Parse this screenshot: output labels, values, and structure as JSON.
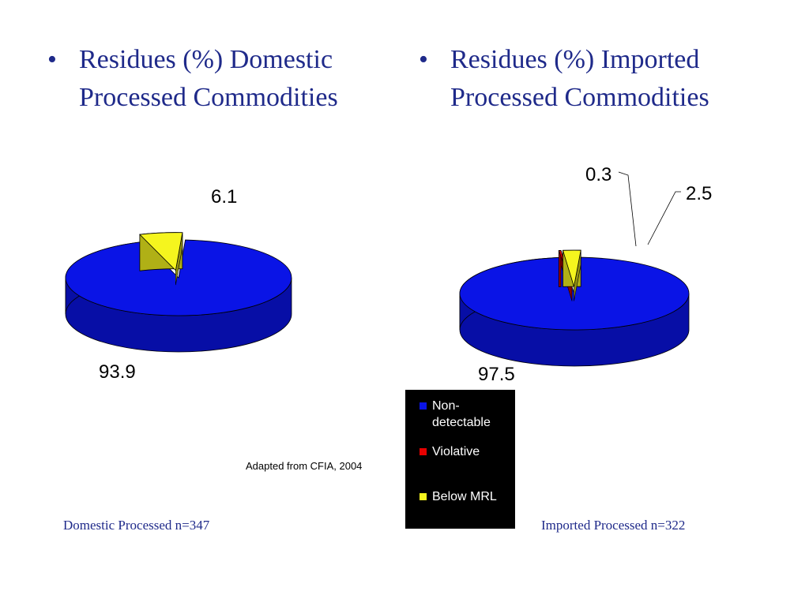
{
  "headings": {
    "left": "Residues (%) Domestic Processed Commodities",
    "right": "Residues (%) Imported Processed Commodities",
    "bullet": "•"
  },
  "source_note": "Adapted from CFIA, 2004",
  "footers": {
    "left": "Domestic Processed n=347",
    "right": "Imported Processed n=322"
  },
  "colors": {
    "non_detectable": "#0a14e6",
    "violative": "#e60000",
    "below_mrl": "#f5f51e"
  },
  "chart_data": [
    {
      "type": "pie",
      "title": "Residues (%) Domestic Processed Commodities",
      "slices": [
        {
          "label": "Non-detectable",
          "value": 93.9,
          "data_label": "93.9"
        },
        {
          "label": "Below MRL",
          "value": 6.1,
          "data_label": "6.1"
        }
      ]
    },
    {
      "type": "pie",
      "title": "Residues (%) Imported Processed Commodities",
      "slices": [
        {
          "label": "Non-detectable",
          "value": 97.5,
          "data_label": "97.5"
        },
        {
          "label": "Violative",
          "value": 0.3,
          "data_label": "0.3"
        },
        {
          "label": "Below MRL",
          "value": 2.5,
          "data_label": "2.5"
        }
      ]
    }
  ],
  "legend": {
    "placement": "bottom-center",
    "items": [
      "Non-detectable",
      "Violative",
      "Below MRL"
    ]
  }
}
